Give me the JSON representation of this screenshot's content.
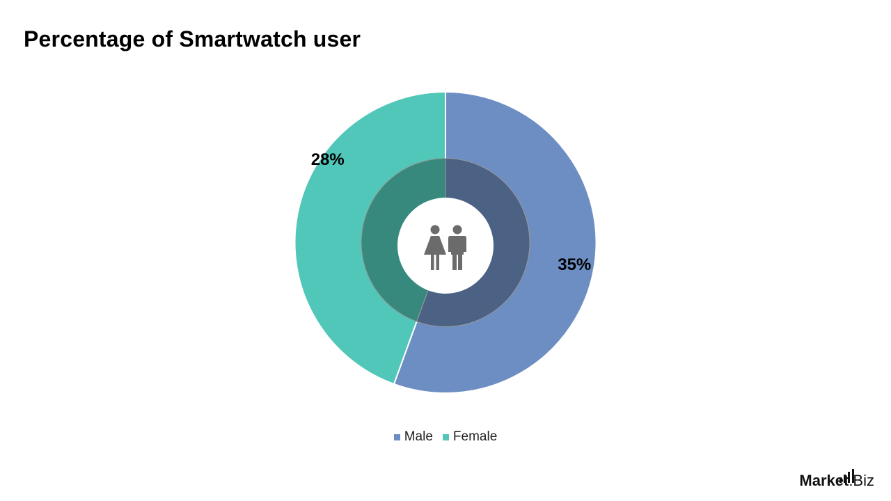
{
  "title": "Percentage of Smartwatch user",
  "chart_data": {
    "type": "pie",
    "title": "Percentage of Smartwatch user",
    "categories": [
      "Male",
      "Female"
    ],
    "values": [
      35,
      28
    ],
    "labels": [
      "35%",
      "28%"
    ],
    "legend_position": "bottom",
    "donut": true,
    "center_icon": "female-male-people-icon",
    "colors": {
      "Male": "#6c8ec2",
      "Female": "#50c7b8",
      "Male_inner": "#4b6285",
      "Female_inner": "#36897c"
    }
  },
  "legend": [
    {
      "label": "Male",
      "color": "#6c8ec2"
    },
    {
      "label": "Female",
      "color": "#50c7b8"
    }
  ],
  "brand": {
    "name": "Market",
    "ext": ".Biz"
  }
}
